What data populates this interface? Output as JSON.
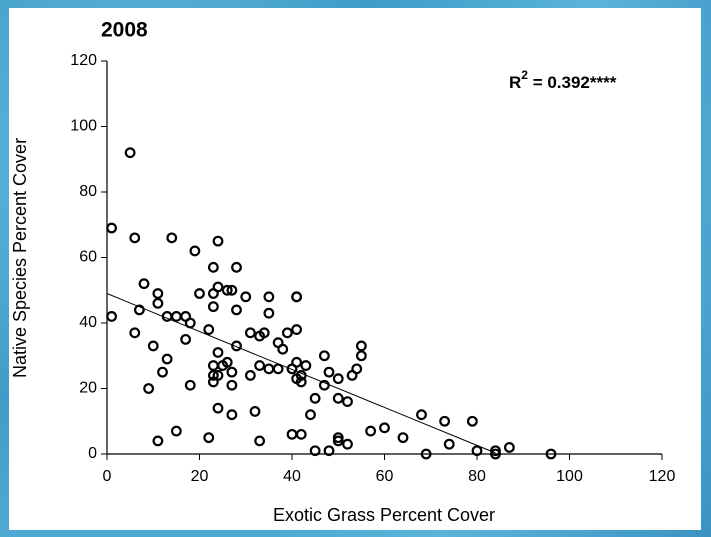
{
  "chart_data": {
    "type": "scatter",
    "title": "2008",
    "annotation": {
      "base": "R",
      "sup": "2",
      "rest": " = 0.392****"
    },
    "xlabel": "Exotic Grass Percent Cover",
    "ylabel": "Native Species Percent Cover",
    "color": "#000000",
    "x": [
      5,
      1,
      6,
      14,
      24,
      19,
      23,
      28,
      8,
      24,
      26,
      27,
      11,
      20,
      23,
      30,
      35,
      41,
      41,
      11,
      23,
      28,
      7,
      35,
      1,
      13,
      15,
      17,
      18,
      22,
      41,
      6,
      31,
      39,
      34,
      10,
      28,
      55,
      17,
      33,
      37,
      38,
      55,
      24,
      47,
      13,
      26,
      41,
      23,
      25,
      33,
      35,
      37,
      40,
      43,
      54,
      53,
      12,
      23,
      27,
      31,
      42,
      41,
      48,
      50,
      24,
      42,
      23,
      47,
      18,
      27,
      9,
      45,
      50,
      52,
      24,
      32,
      44,
      27,
      68,
      73,
      79,
      60,
      15,
      57,
      40,
      42,
      64,
      22,
      50,
      11,
      33,
      50,
      52,
      74,
      87,
      84,
      80,
      45,
      48,
      69,
      84,
      96
    ],
    "values": [
      92,
      69,
      66,
      66,
      65,
      62,
      57,
      57,
      52,
      51,
      50,
      50,
      49,
      49,
      49,
      48,
      48,
      48,
      48,
      46,
      45,
      44,
      44,
      43,
      42,
      42,
      42,
      42,
      40,
      38,
      38,
      37,
      37,
      37,
      37,
      33,
      33,
      33,
      35,
      36,
      34,
      32,
      30,
      31,
      30,
      29,
      28,
      28,
      27,
      27,
      27,
      26,
      26,
      26,
      27,
      26,
      24,
      25,
      24,
      25,
      24,
      24,
      23,
      25,
      23,
      24,
      22,
      22,
      21,
      21,
      21,
      20,
      17,
      17,
      16,
      14,
      13,
      12,
      12,
      12,
      10,
      10,
      8,
      7,
      7,
      6,
      6,
      5,
      5,
      5,
      4,
      4,
      4,
      3,
      3,
      2,
      1,
      1,
      1,
      1,
      0,
      0,
      0
    ],
    "trendline": {
      "x": [
        0,
        84
      ],
      "y": [
        49,
        0.3
      ]
    },
    "xlim": [
      0,
      120
    ],
    "ylim": [
      0,
      120
    ],
    "xticks": [
      0,
      20,
      40,
      60,
      80,
      100,
      120
    ],
    "yticks": [
      0,
      20,
      40,
      60,
      80,
      100,
      120
    ]
  }
}
